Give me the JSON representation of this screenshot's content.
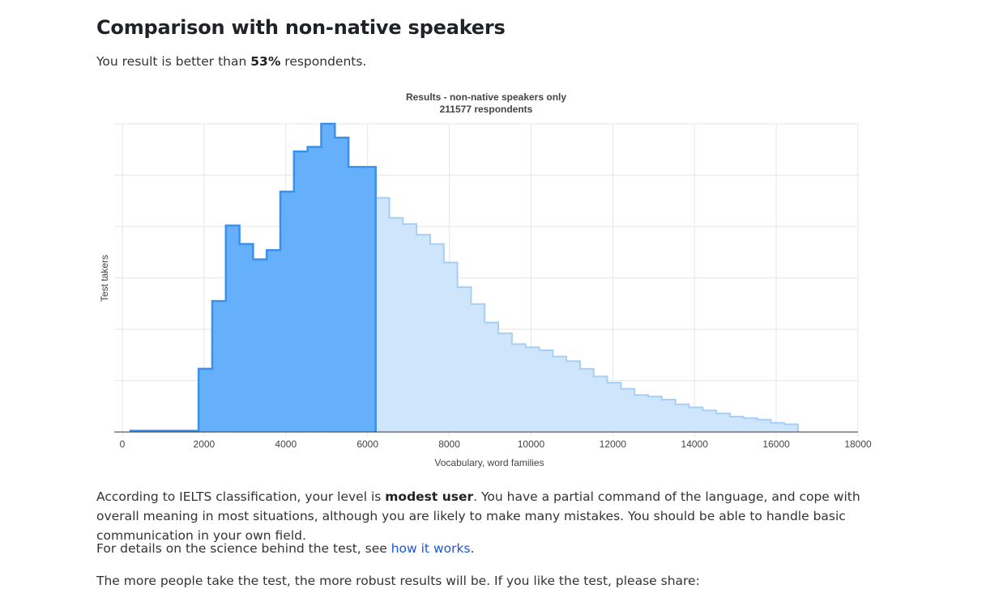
{
  "heading": "Comparison with non-native speakers",
  "summary": {
    "prefix": "You result is better than ",
    "percent": "53%",
    "suffix": " respondents."
  },
  "level_text": {
    "prefix": "According to IELTS classification, your level is ",
    "level": "modest user",
    "suffix": ". You have a partial command of the language, and cope with overall meaning in most situations, although you are likely to make many mistakes. You should be able to handle basic communication in your own field."
  },
  "details": {
    "prefix": "For details on the science behind the test, see ",
    "link": "how it works",
    "suffix": "."
  },
  "share_text": "The more people take the test, the more robust results will be. If you like the test, please share:",
  "chart_data": {
    "type": "area",
    "title": "Results - non-native speakers only",
    "subtitle": "211577 respondents",
    "xlabel": "Vocabulary, word families",
    "ylabel": "Test takers",
    "xlim": [
      0,
      18000
    ],
    "xticks": [
      0,
      2000,
      4000,
      6000,
      8000,
      10000,
      12000,
      14000,
      16000,
      18000
    ],
    "ylim": [
      0,
      100
    ],
    "grid": true,
    "highlight_until": 6200,
    "colors": {
      "highlight": "#66b0fb",
      "highlight_line": "#3a90ec",
      "rest": "#cfe5fb",
      "rest_line": "#a6cff7"
    },
    "bin_width": 333,
    "bins_start": [
      200,
      533,
      866,
      1200,
      1533,
      1866,
      2200,
      2533,
      2866,
      3200,
      3533,
      3866,
      4200,
      4533,
      4866,
      5200,
      5533,
      5866,
      6200,
      6533,
      6866,
      7200,
      7533,
      7866,
      8200,
      8533,
      8866,
      9200,
      9533,
      9866,
      10200,
      10533,
      10866,
      11200,
      11533,
      11866,
      12200,
      12533,
      12866,
      13200,
      13533,
      13866,
      14200,
      14533,
      14866,
      15200,
      15533,
      15866,
      16200
    ],
    "values": [
      0.4,
      0.4,
      0.4,
      0.4,
      0.4,
      20.5,
      42.5,
      67,
      61,
      56,
      59,
      78,
      91,
      92.5,
      100,
      95.5,
      86,
      86,
      76,
      69.5,
      67.5,
      64,
      61,
      55,
      47,
      41.5,
      35.5,
      32,
      28.5,
      27.5,
      26.5,
      24.5,
      23,
      20.5,
      18,
      16,
      14,
      12,
      11.5,
      10.5,
      9,
      8,
      7,
      6,
      5,
      4.5,
      4,
      3,
      2.5
    ]
  }
}
